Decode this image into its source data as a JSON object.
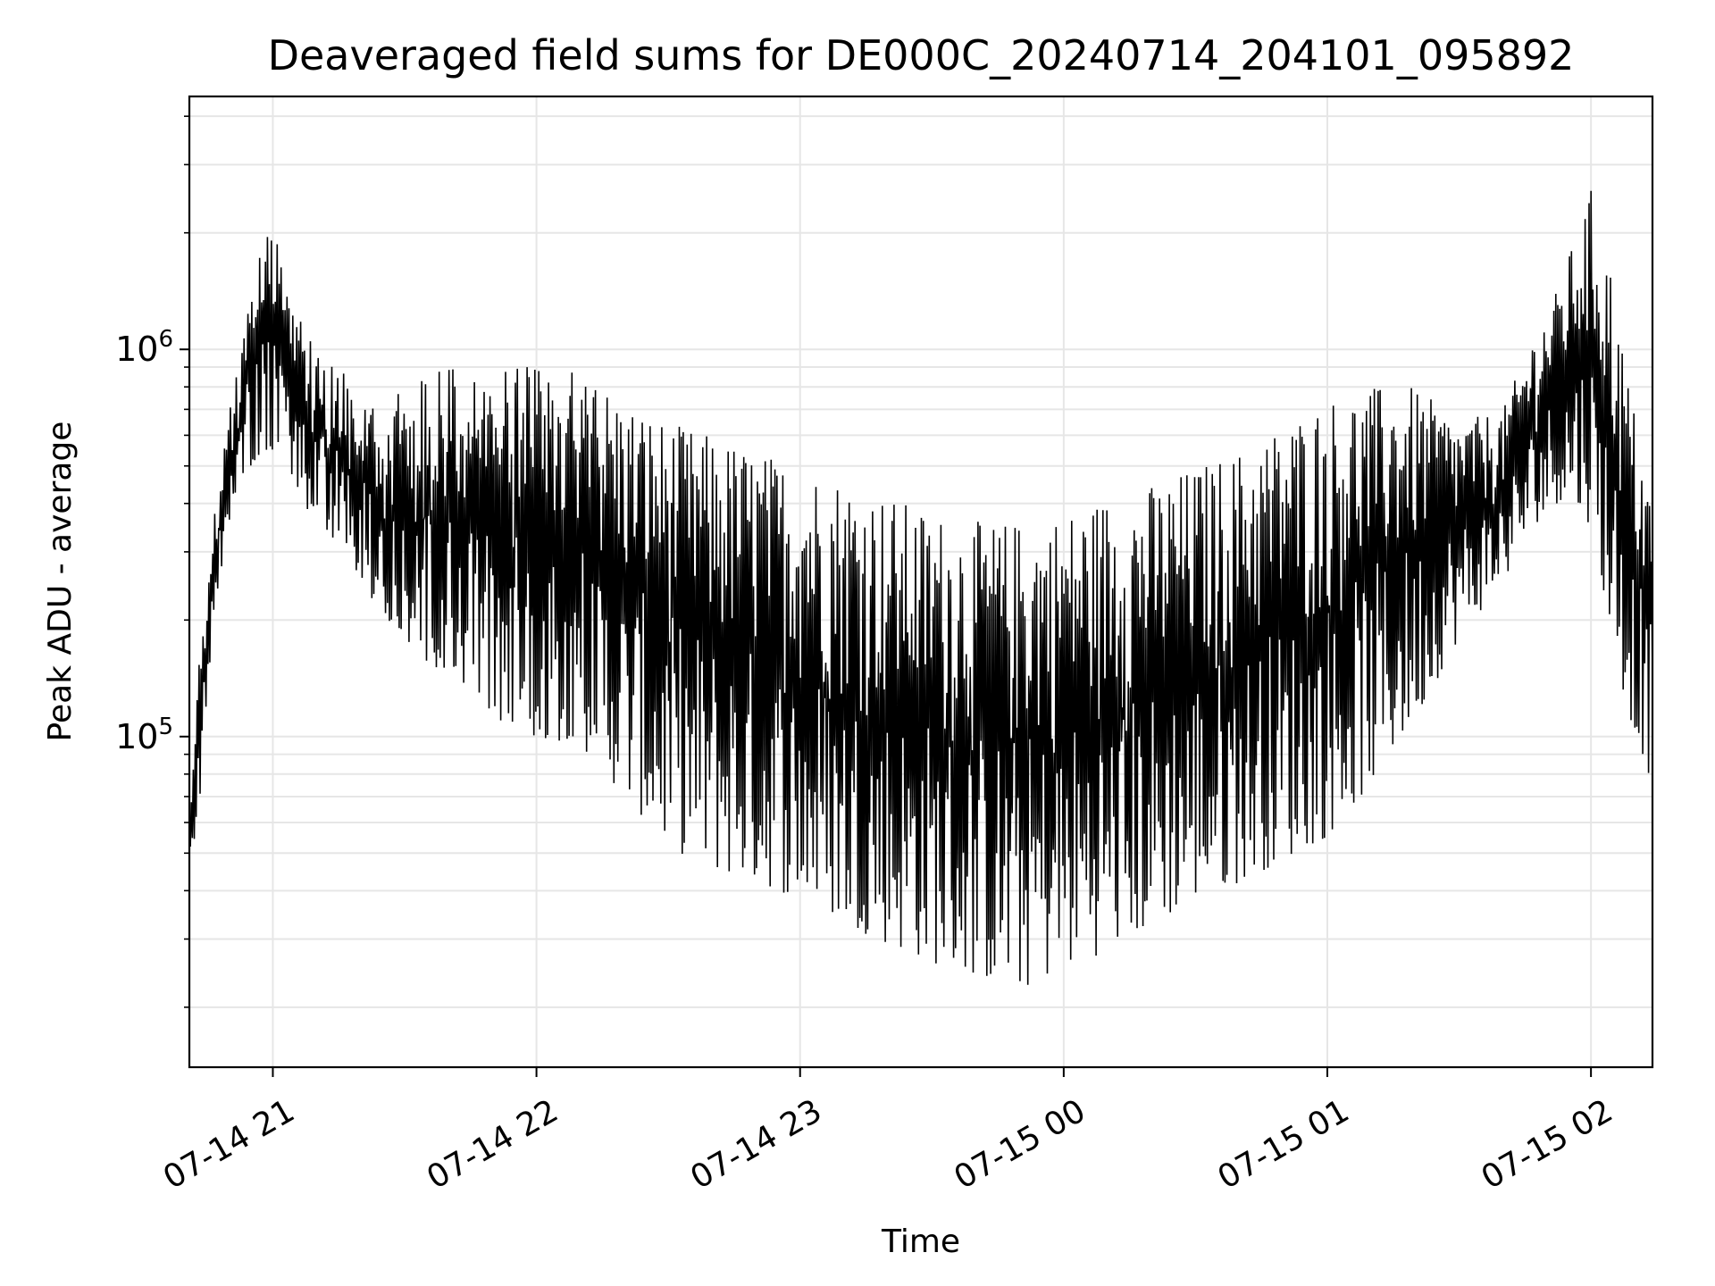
{
  "chart_data": {
    "type": "line",
    "title": "Deaveraged field sums for DE000C_20240714_204101_095892",
    "xlabel": "Time",
    "ylabel": "Peak ADU - average",
    "y_scale": "log",
    "xlim": [
      "2024-07-14 20:41",
      "2024-07-15 02:14"
    ],
    "ylim": [
      14000,
      4500000
    ],
    "grid": true,
    "line_color": "#000000",
    "grid_color": "#e6e6e6",
    "x_ticks": [
      {
        "value": "2024-07-14 21:00",
        "label": "07-14 21"
      },
      {
        "value": "2024-07-14 22:00",
        "label": "07-14 22"
      },
      {
        "value": "2024-07-14 23:00",
        "label": "07-14 23"
      },
      {
        "value": "2024-07-15 00:00",
        "label": "07-15 00"
      },
      {
        "value": "2024-07-15 01:00",
        "label": "07-15 01"
      },
      {
        "value": "2024-07-15 02:00",
        "label": "07-15 02"
      }
    ],
    "y_ticks": [
      {
        "value": 100000,
        "base": "10",
        "exp": "5"
      },
      {
        "value": 1000000,
        "base": "10",
        "exp": "6"
      }
    ],
    "series": [
      {
        "x": [
          "2024-07-14 20:41",
          "2024-07-14 20:44",
          "2024-07-14 20:47",
          "2024-07-14 20:51",
          "2024-07-14 20:55",
          "2024-07-14 20:58",
          "2024-07-14 21:00",
          "2024-07-14 21:03",
          "2024-07-14 21:06",
          "2024-07-14 21:10",
          "2024-07-14 21:15",
          "2024-07-14 21:20",
          "2024-07-14 21:25",
          "2024-07-14 21:30",
          "2024-07-14 21:40",
          "2024-07-14 21:50",
          "2024-07-14 22:00",
          "2024-07-14 22:10",
          "2024-07-14 22:20",
          "2024-07-14 22:30",
          "2024-07-14 22:40",
          "2024-07-14 22:50",
          "2024-07-14 23:00",
          "2024-07-14 23:10",
          "2024-07-14 23:20",
          "2024-07-14 23:30",
          "2024-07-14 23:40",
          "2024-07-14 23:50",
          "2024-07-15 00:00",
          "2024-07-15 00:10",
          "2024-07-15 00:20",
          "2024-07-15 00:30",
          "2024-07-15 00:40",
          "2024-07-15 00:50",
          "2024-07-15 01:00",
          "2024-07-15 01:10",
          "2024-07-15 01:20",
          "2024-07-15 01:30",
          "2024-07-15 01:40",
          "2024-07-15 01:47",
          "2024-07-15 01:52",
          "2024-07-15 01:56",
          "2024-07-15 02:00",
          "2024-07-15 02:04",
          "2024-07-15 02:08",
          "2024-07-15 02:14"
        ],
        "high": [
          60000,
          220000,
          400000,
          800000,
          1500000,
          2000000,
          2200000,
          1600000,
          1300000,
          1000000,
          900000,
          800000,
          700000,
          900000,
          900000,
          900000,
          900000,
          900000,
          750000,
          650000,
          600000,
          550000,
          500000,
          470000,
          420000,
          380000,
          360000,
          360000,
          380000,
          420000,
          450000,
          500000,
          550000,
          650000,
          750000,
          800000,
          800000,
          650000,
          700000,
          1100000,
          1400000,
          1900000,
          2600000,
          1800000,
          900000,
          400000
        ],
        "low": [
          42000,
          80000,
          200000,
          400000,
          500000,
          550000,
          550000,
          500000,
          400000,
          350000,
          300000,
          250000,
          200000,
          160000,
          140000,
          110000,
          100000,
          95000,
          70000,
          52000,
          45000,
          42000,
          38000,
          33000,
          29000,
          26000,
          24000,
          22000,
          25000,
          28000,
          32000,
          38000,
          42000,
          48000,
          55000,
          75000,
          110000,
          180000,
          250000,
          350000,
          400000,
          400000,
          350000,
          200000,
          120000,
          75000
        ]
      }
    ]
  }
}
